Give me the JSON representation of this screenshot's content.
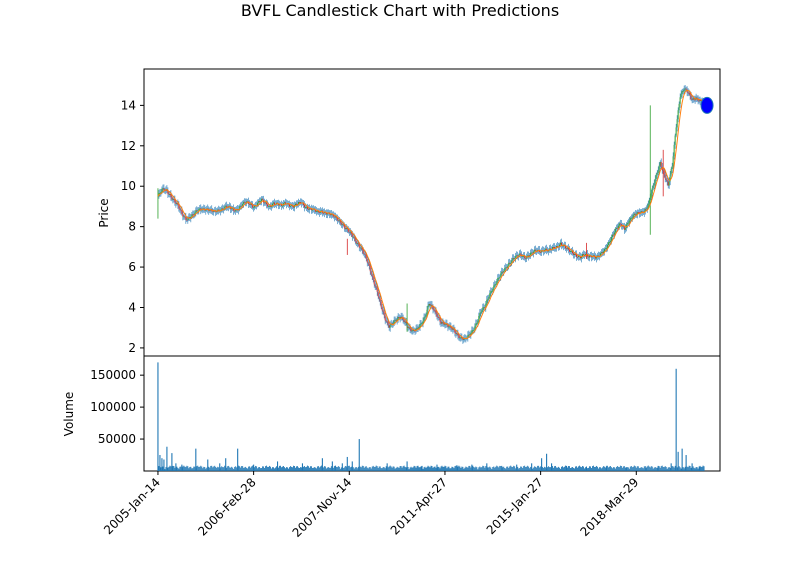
{
  "chart_data": {
    "type": "candlestick",
    "title": "BVFL Candlestick Chart with Predictions",
    "price_panel": {
      "ylabel": "Price",
      "ylim": [
        1.6,
        15.8
      ],
      "yticks": [
        2,
        4,
        6,
        8,
        10,
        12,
        14
      ],
      "close_series": [
        [
          0,
          9.5
        ],
        [
          4,
          9.8
        ],
        [
          8,
          9.8
        ],
        [
          12,
          9.6
        ],
        [
          16,
          9.3
        ],
        [
          20,
          9.0
        ],
        [
          24,
          8.6
        ],
        [
          28,
          8.4
        ],
        [
          32,
          8.5
        ],
        [
          36,
          8.6
        ],
        [
          40,
          8.8
        ],
        [
          44,
          8.9
        ],
        [
          48,
          8.9
        ],
        [
          52,
          8.8
        ],
        [
          56,
          8.7
        ],
        [
          60,
          8.8
        ],
        [
          64,
          8.9
        ],
        [
          68,
          9.0
        ],
        [
          72,
          8.9
        ],
        [
          76,
          8.8
        ],
        [
          80,
          8.9
        ],
        [
          84,
          9.1
        ],
        [
          88,
          9.2
        ],
        [
          92,
          9.1
        ],
        [
          96,
          9.0
        ],
        [
          100,
          9.2
        ],
        [
          104,
          9.3
        ],
        [
          108,
          9.1
        ],
        [
          112,
          9.0
        ],
        [
          116,
          9.2
        ],
        [
          120,
          9.1
        ],
        [
          124,
          9.0
        ],
        [
          128,
          9.2
        ],
        [
          132,
          9.1
        ],
        [
          136,
          9.0
        ],
        [
          140,
          9.1
        ],
        [
          144,
          9.2
        ],
        [
          148,
          9.0
        ],
        [
          152,
          8.9
        ],
        [
          156,
          8.8
        ],
        [
          160,
          8.7
        ],
        [
          164,
          8.8
        ],
        [
          168,
          8.7
        ],
        [
          172,
          8.6
        ],
        [
          176,
          8.5
        ],
        [
          180,
          8.4
        ],
        [
          184,
          8.2
        ],
        [
          188,
          7.9
        ],
        [
          192,
          7.7
        ],
        [
          196,
          7.5
        ],
        [
          200,
          7.2
        ],
        [
          204,
          6.9
        ],
        [
          208,
          6.5
        ],
        [
          212,
          6.0
        ],
        [
          216,
          5.4
        ],
        [
          220,
          4.8
        ],
        [
          224,
          4.0
        ],
        [
          228,
          3.4
        ],
        [
          232,
          3.1
        ],
        [
          236,
          3.3
        ],
        [
          240,
          3.4
        ],
        [
          244,
          3.5
        ],
        [
          248,
          3.3
        ],
        [
          252,
          3.0
        ],
        [
          256,
          2.8
        ],
        [
          260,
          2.9
        ],
        [
          264,
          3.2
        ],
        [
          268,
          3.6
        ],
        [
          272,
          4.2
        ],
        [
          276,
          3.9
        ],
        [
          280,
          3.6
        ],
        [
          284,
          3.3
        ],
        [
          288,
          3.2
        ],
        [
          292,
          3.0
        ],
        [
          296,
          2.9
        ],
        [
          300,
          2.7
        ],
        [
          304,
          2.5
        ],
        [
          308,
          2.4
        ],
        [
          312,
          2.6
        ],
        [
          316,
          2.9
        ],
        [
          320,
          3.3
        ],
        [
          324,
          3.8
        ],
        [
          328,
          4.0
        ],
        [
          332,
          4.6
        ],
        [
          336,
          5.0
        ],
        [
          340,
          5.3
        ],
        [
          344,
          5.6
        ],
        [
          348,
          5.9
        ],
        [
          352,
          6.2
        ],
        [
          356,
          6.4
        ],
        [
          360,
          6.5
        ],
        [
          364,
          6.6
        ],
        [
          368,
          6.5
        ],
        [
          372,
          6.6
        ],
        [
          376,
          6.7
        ],
        [
          380,
          6.8
        ],
        [
          384,
          6.8
        ],
        [
          388,
          6.9
        ],
        [
          392,
          6.8
        ],
        [
          396,
          6.9
        ],
        [
          400,
          7.0
        ],
        [
          404,
          7.2
        ],
        [
          408,
          7.0
        ],
        [
          412,
          6.8
        ],
        [
          416,
          6.7
        ],
        [
          420,
          6.6
        ],
        [
          424,
          6.5
        ],
        [
          428,
          6.6
        ],
        [
          432,
          6.5
        ],
        [
          436,
          6.6
        ],
        [
          440,
          6.5
        ],
        [
          444,
          6.6
        ],
        [
          448,
          6.8
        ],
        [
          452,
          7.2
        ],
        [
          456,
          7.6
        ],
        [
          460,
          7.9
        ],
        [
          464,
          8.1
        ],
        [
          468,
          7.9
        ],
        [
          472,
          8.3
        ],
        [
          476,
          8.5
        ],
        [
          480,
          8.6
        ],
        [
          484,
          8.7
        ],
        [
          488,
          8.8
        ],
        [
          492,
          9.1
        ],
        [
          496,
          9.8
        ],
        [
          500,
          10.5
        ],
        [
          504,
          11.2
        ],
        [
          508,
          10.6
        ],
        [
          512,
          10.0
        ],
        [
          516,
          11.0
        ],
        [
          520,
          13.0
        ],
        [
          524,
          14.5
        ],
        [
          528,
          14.8
        ],
        [
          532,
          14.6
        ],
        [
          536,
          14.3
        ],
        [
          540,
          14.4
        ],
        [
          544,
          14.2
        ],
        [
          548,
          14.1
        ]
      ],
      "prediction": {
        "x": 548,
        "y": 14.0
      },
      "up_color": "#2ca02c",
      "down_color": "#d62728",
      "wick_color": "#1f77b4",
      "ma_color": "#ff7f0e",
      "prediction_color": "#0000ff"
    },
    "volume_panel": {
      "ylabel": "Volume",
      "ylim": [
        0,
        180000
      ],
      "yticks": [
        50000,
        100000,
        150000
      ],
      "ytick_labels": [
        "50000",
        "100000",
        "150000"
      ],
      "spikes": [
        [
          0,
          170000
        ],
        [
          2,
          25000
        ],
        [
          4,
          20000
        ],
        [
          6,
          18000
        ],
        [
          9,
          38000
        ],
        [
          14,
          28000
        ],
        [
          18,
          12000
        ],
        [
          24,
          10000
        ],
        [
          38,
          35000
        ],
        [
          50,
          18000
        ],
        [
          62,
          12000
        ],
        [
          68,
          20000
        ],
        [
          80,
          35000
        ],
        [
          96,
          10000
        ],
        [
          120,
          15000
        ],
        [
          145,
          12000
        ],
        [
          165,
          20000
        ],
        [
          175,
          15000
        ],
        [
          178,
          8000
        ],
        [
          185,
          12000
        ],
        [
          190,
          22000
        ],
        [
          195,
          15000
        ],
        [
          202,
          50000
        ],
        [
          230,
          12000
        ],
        [
          250,
          15000
        ],
        [
          265,
          8000
        ],
        [
          280,
          10000
        ],
        [
          300,
          9000
        ],
        [
          315,
          10000
        ],
        [
          330,
          12000
        ],
        [
          345,
          8000
        ],
        [
          360,
          10000
        ],
        [
          375,
          12000
        ],
        [
          385,
          20000
        ],
        [
          390,
          27000
        ],
        [
          395,
          12000
        ],
        [
          410,
          8000
        ],
        [
          430,
          7000
        ],
        [
          450,
          6000
        ],
        [
          470,
          6000
        ],
        [
          490,
          5000
        ],
        [
          502,
          8000
        ],
        [
          515,
          12000
        ],
        [
          520,
          160000
        ],
        [
          522,
          30000
        ],
        [
          526,
          35000
        ],
        [
          530,
          25000
        ],
        [
          536,
          12000
        ],
        [
          544,
          7000
        ]
      ],
      "bar_color": "#1f77b4"
    },
    "xlim": [
      -14,
      564
    ],
    "xticks": [
      0,
      96,
      192,
      288,
      384,
      480
    ],
    "xtick_labels": [
      "2005-Jan-14",
      "2006-Feb-28",
      "2007-Nov-14",
      "2011-Apr-27",
      "2015-Jan-27",
      "2018-Mar-29"
    ]
  }
}
